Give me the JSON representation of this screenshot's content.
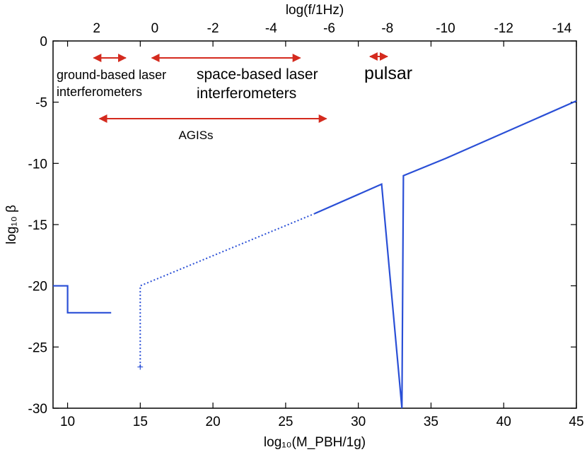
{
  "chart_data": {
    "type": "line",
    "xlabel": "log₁₀(M_PBH/1g)",
    "ylabel": "log₁₀ β",
    "top_xlabel": "log(f/1Hz)",
    "xlim": [
      9,
      45
    ],
    "ylim": [
      -30,
      0
    ],
    "x_ticks": [
      10,
      15,
      20,
      25,
      30,
      35,
      40,
      45
    ],
    "y_ticks": [
      0,
      -5,
      -10,
      -15,
      -20,
      -25,
      -30
    ],
    "top_ticks": [
      2,
      0,
      -2,
      -4,
      -6,
      -8,
      -10,
      -12,
      -14
    ],
    "top_tick_positions": [
      12.0,
      16.0,
      20.0,
      24.0,
      28.0,
      32.0,
      36.0,
      40.0,
      44.0
    ],
    "grid": false,
    "colors": {
      "curve": "#2a4fd6",
      "arrow": "#d42a1e"
    },
    "series": [
      {
        "style": "solid",
        "points": [
          [
            9,
            -20.0
          ],
          [
            10,
            -20.0
          ],
          [
            10,
            -22.2
          ],
          [
            13,
            -22.2
          ]
        ]
      },
      {
        "style": "dotted",
        "points": [
          [
            15,
            -26.6
          ],
          [
            15,
            -20.0
          ],
          [
            27,
            -14.1
          ]
        ]
      },
      {
        "style": "solid",
        "points": [
          [
            27,
            -14.1
          ],
          [
            31.6,
            -11.7
          ],
          [
            33,
            -30
          ],
          [
            33.1,
            -11.0
          ],
          [
            36,
            -9.6
          ],
          [
            45,
            -4.9
          ]
        ]
      }
    ],
    "markers": [
      {
        "x": 15,
        "y": -26.6,
        "symbol": "+"
      }
    ],
    "annotations": [
      {
        "lines": [
          "ground-based laser",
          "interferometers"
        ],
        "arrow_top": [
          2.1,
          1.0
        ],
        "size": "small"
      },
      {
        "lines": [
          "space-based laser",
          "interferometers"
        ],
        "arrow_top": [
          0.1,
          -5.0
        ],
        "size": "large"
      },
      {
        "lines": [
          "pulsar"
        ],
        "arrow_top": [
          -7.4,
          -8.0
        ],
        "size": "xlarge"
      },
      {
        "lines": [
          "AGISs"
        ],
        "arrow_top": [
          1.9,
          -5.9
        ],
        "size": "small"
      }
    ]
  }
}
